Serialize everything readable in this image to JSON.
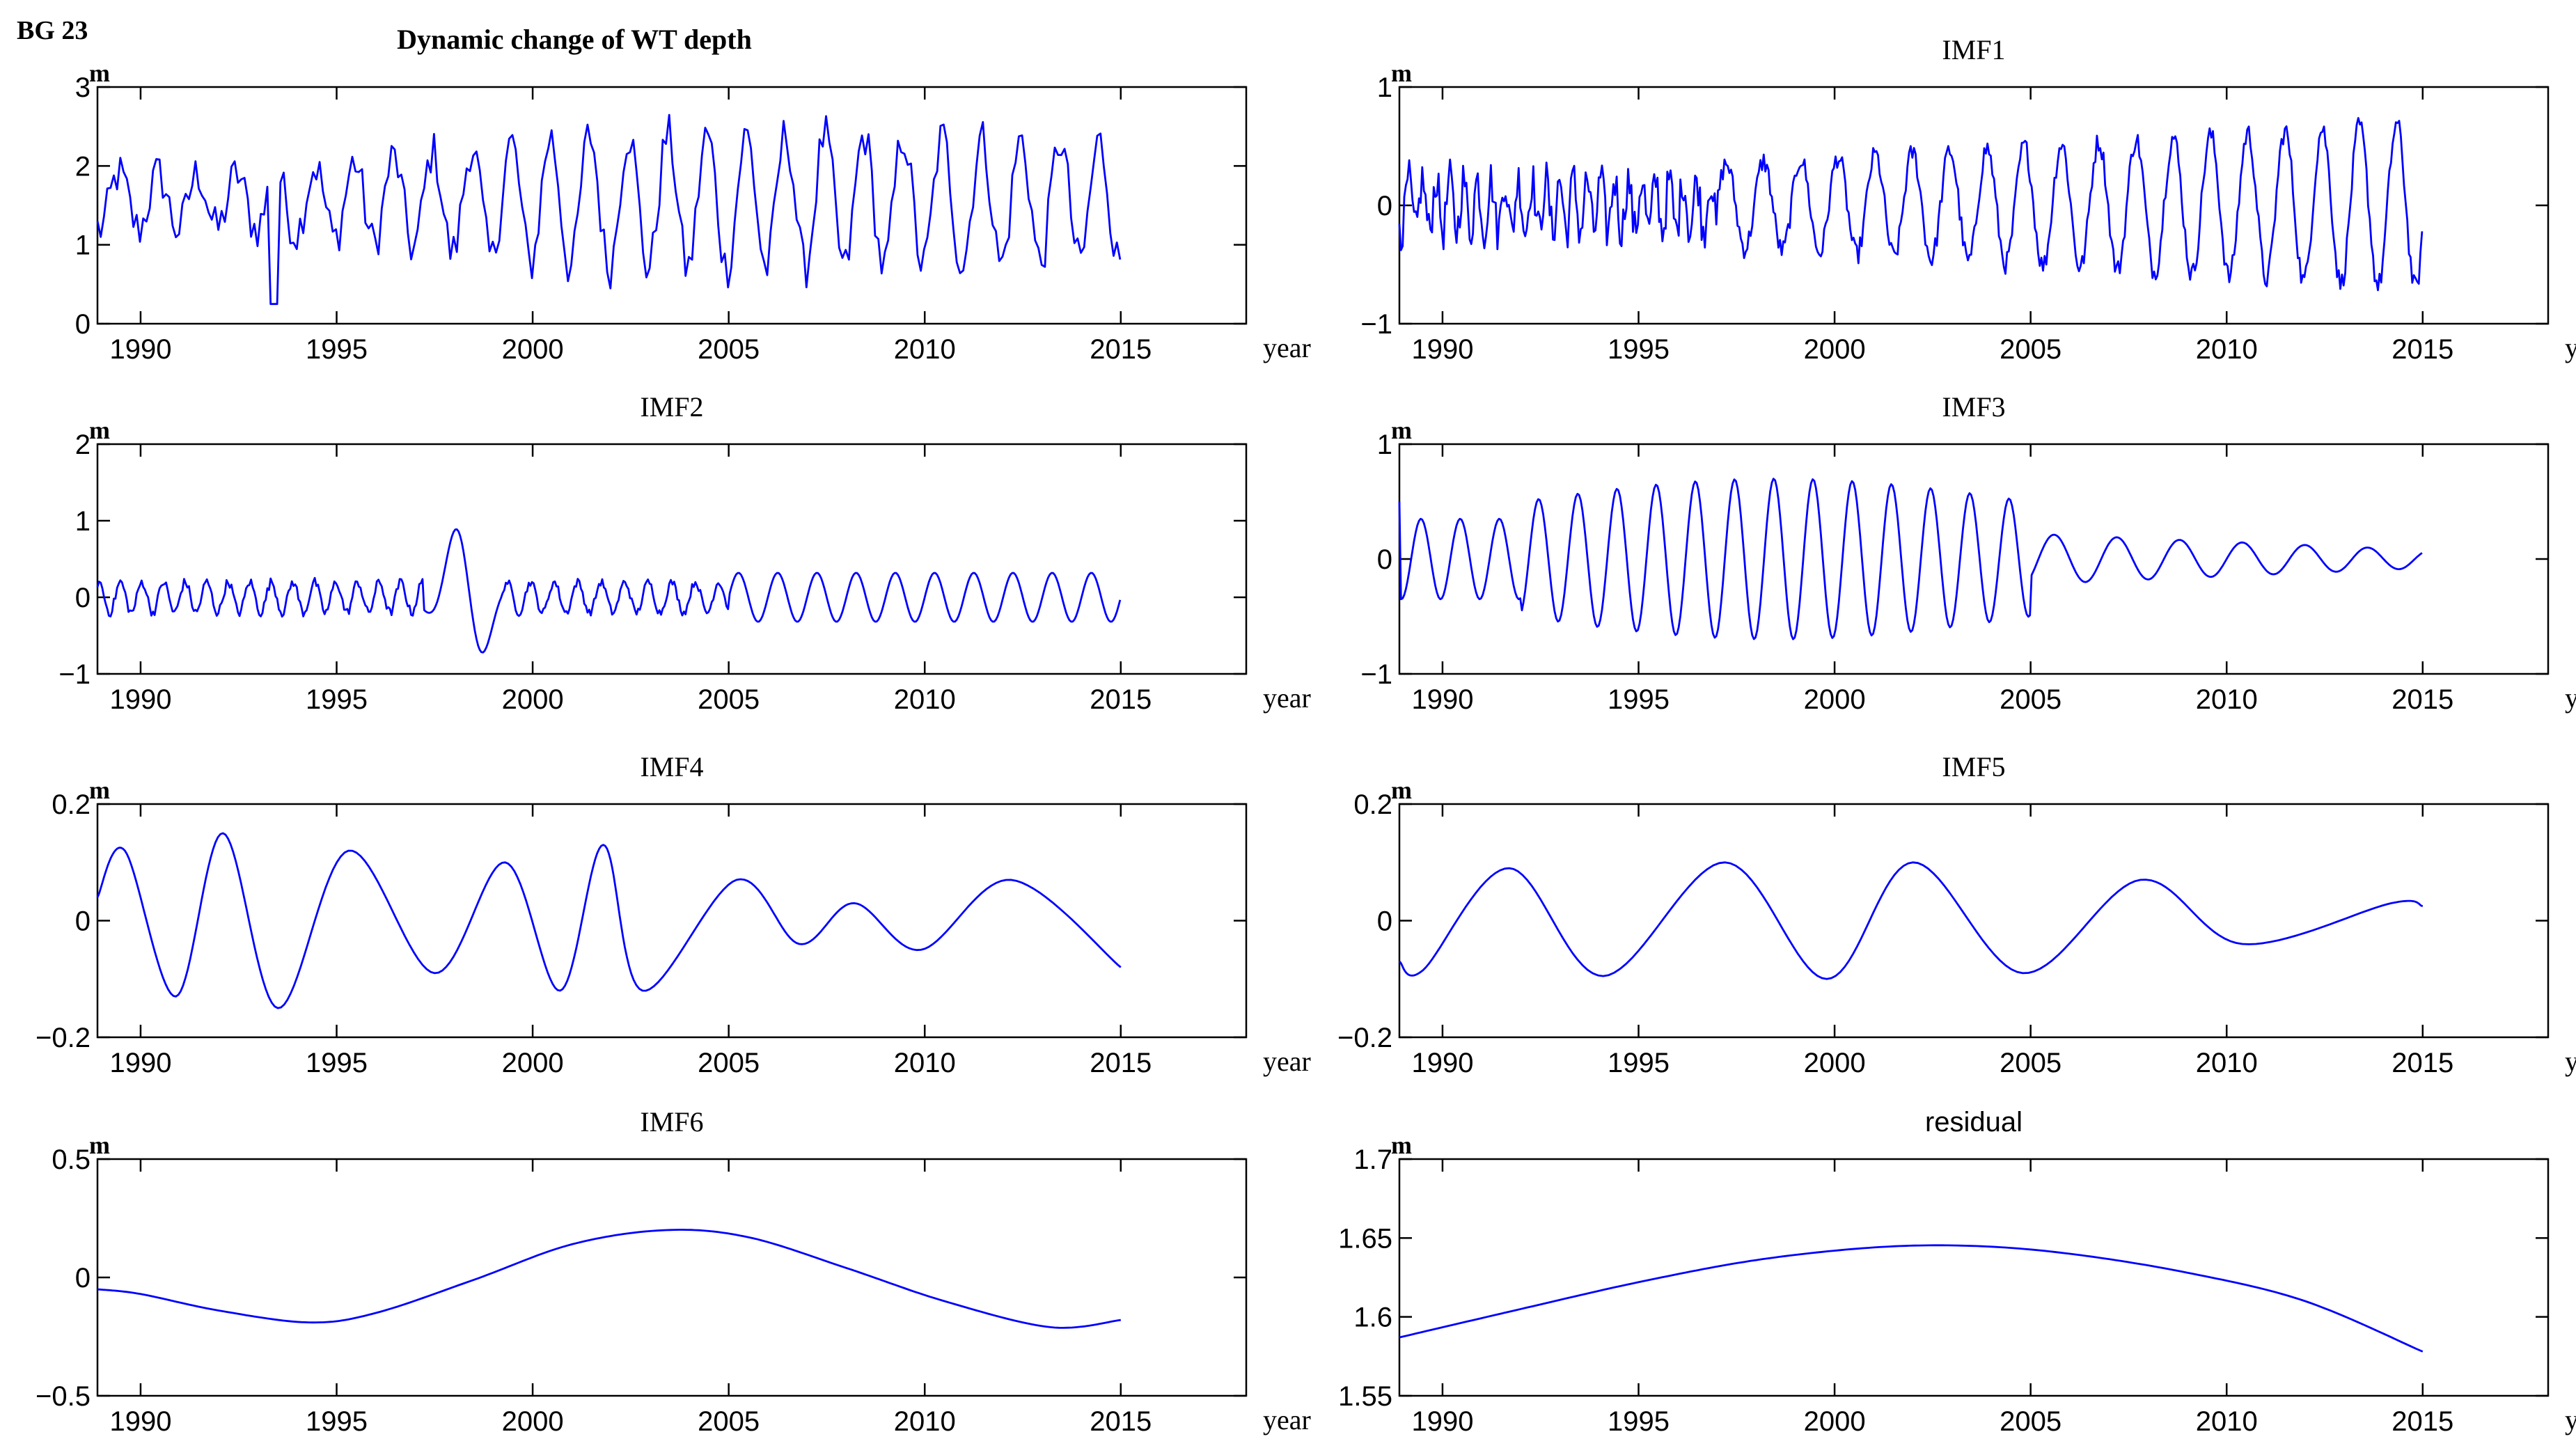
{
  "figure": {
    "station_label": "BG 23"
  },
  "colors": {
    "series": "#0000ff",
    "axes": "#000000",
    "background": "#ffffff"
  },
  "chart_data": [
    {
      "type": "line",
      "id": "wt",
      "title": "Dynamic change of WT depth",
      "ylabel": "m",
      "xlabel": "year",
      "ylim": [
        0,
        3
      ],
      "yticks": [
        "0",
        "1",
        "2",
        "3"
      ],
      "xlim": [
        1988.9,
        2018.2
      ],
      "xticks": [
        1990,
        1995,
        2000,
        2005,
        2010,
        2015
      ],
      "series": [
        {
          "gen": {
            "kind": "wt",
            "mean": 1.5,
            "amp": 0.75,
            "period": 1,
            "noise": 0.25
          }
        }
      ]
    },
    {
      "type": "line",
      "id": "imf1",
      "title": "IMF1",
      "ylabel": "m",
      "xlabel": "year",
      "ylim": [
        -1,
        1
      ],
      "yticks": [
        "−1",
        "0",
        "1"
      ],
      "xlim": [
        1988.9,
        2018.2
      ],
      "xticks": [
        1990,
        1995,
        2000,
        2005,
        2010,
        2015
      ],
      "series": [
        {
          "gen": {
            "kind": "imf1",
            "period": 0.65,
            "amp": 0.6
          }
        }
      ]
    },
    {
      "type": "line",
      "id": "imf2",
      "title": "IMF2",
      "ylabel": "m",
      "xlabel": "year",
      "ylim": [
        -1,
        2
      ],
      "yticks": [
        "−1",
        "0",
        "1",
        "2"
      ],
      "xlim": [
        1988.9,
        2018.2
      ],
      "xticks": [
        1990,
        1995,
        2000,
        2005,
        2010,
        2015
      ],
      "series": [
        {
          "gen": {
            "kind": "imf2",
            "period": 1.0,
            "amp": 0.3
          }
        }
      ]
    },
    {
      "type": "line",
      "id": "imf3",
      "title": "IMF3",
      "ylabel": "m",
      "xlabel": "year",
      "ylim": [
        -1,
        1
      ],
      "yticks": [
        "−1",
        "0",
        "1"
      ],
      "xlim": [
        1988.9,
        2018.2
      ],
      "xticks": [
        1990,
        1995,
        2000,
        2005,
        2010,
        2015
      ],
      "series": [
        {
          "gen": {
            "kind": "imf3",
            "period": 1.0,
            "amp": 0.6
          }
        }
      ]
    },
    {
      "type": "line",
      "id": "imf4",
      "title": "IMF4",
      "ylabel": "m",
      "xlabel": "year",
      "ylim": [
        -0.2,
        0.2
      ],
      "yticks": [
        "−0.2",
        "0",
        "0.2"
      ],
      "xlim": [
        1988.9,
        2018.2
      ],
      "xticks": [
        1990,
        1995,
        2000,
        2005,
        2010,
        2015
      ],
      "series": [
        {
          "points": [
            [
              1988.9,
              0.04
            ],
            [
              1989.6,
              0.12
            ],
            [
              1990.9,
              -0.13
            ],
            [
              1992.1,
              0.15
            ],
            [
              1993.5,
              -0.15
            ],
            [
              1995.3,
              0.12
            ],
            [
              1997.5,
              -0.09
            ],
            [
              1999.3,
              0.1
            ],
            [
              2000.7,
              -0.12
            ],
            [
              2001.8,
              0.13
            ],
            [
              2002.8,
              -0.12
            ],
            [
              2005.2,
              0.07
            ],
            [
              2006.8,
              -0.04
            ],
            [
              2008.2,
              0.03
            ],
            [
              2009.9,
              -0.05
            ],
            [
              2012.2,
              0.07
            ],
            [
              2015.0,
              -0.08
            ]
          ]
        }
      ]
    },
    {
      "type": "line",
      "id": "imf5",
      "title": "IMF5",
      "ylabel": "m",
      "xlabel": "year",
      "ylim": [
        -0.2,
        0.2
      ],
      "yticks": [
        "−0.2",
        "0",
        "0.2"
      ],
      "xlim": [
        1988.9,
        2018.2
      ],
      "xticks": [
        1990,
        1995,
        2000,
        2005,
        2010,
        2015
      ],
      "series": [
        {
          "points": [
            [
              1988.9,
              -0.07
            ],
            [
              1989.5,
              -0.085
            ],
            [
              1991.7,
              0.09
            ],
            [
              1994.1,
              -0.095
            ],
            [
              1997.2,
              0.1
            ],
            [
              1999.8,
              -0.1
            ],
            [
              2002.0,
              0.1
            ],
            [
              2004.8,
              -0.09
            ],
            [
              2007.8,
              0.07
            ],
            [
              2010.4,
              -0.04
            ],
            [
              2014.2,
              0.03
            ],
            [
              2015.0,
              0.025
            ]
          ]
        }
      ]
    },
    {
      "type": "line",
      "id": "imf6",
      "title": "IMF6",
      "ylabel": "m",
      "xlabel": "year",
      "ylim": [
        -0.5,
        0.5
      ],
      "yticks": [
        "−0.5",
        "0",
        "0.5"
      ],
      "xlim": [
        1988.9,
        2018.2
      ],
      "xticks": [
        1990,
        1995,
        2000,
        2005,
        2010,
        2015
      ],
      "series": [
        {
          "points": [
            [
              1988.9,
              -0.05
            ],
            [
              1990.0,
              -0.07
            ],
            [
              1992.0,
              -0.14
            ],
            [
              1994.3,
              -0.19
            ],
            [
              1996.0,
              -0.15
            ],
            [
              1998.5,
              -0.01
            ],
            [
              2001.0,
              0.14
            ],
            [
              2003.4,
              0.2
            ],
            [
              2005.5,
              0.17
            ],
            [
              2008.0,
              0.04
            ],
            [
              2010.5,
              -0.1
            ],
            [
              2013.2,
              -0.21
            ],
            [
              2015.0,
              -0.18
            ]
          ]
        }
      ]
    },
    {
      "type": "line",
      "id": "residual",
      "title": "residual",
      "ylabel": "m",
      "xlabel": "year",
      "ylim": [
        1.55,
        1.7
      ],
      "yticks": [
        "1.55",
        "1.6",
        "1.65",
        "1.7"
      ],
      "xlim": [
        1988.9,
        2018.2
      ],
      "xticks": [
        1990,
        1995,
        2000,
        2005,
        2010,
        2015
      ],
      "series": [
        {
          "points": [
            [
              1988.9,
              1.587
            ],
            [
              1992.0,
              1.605
            ],
            [
              1995.0,
              1.622
            ],
            [
              1998.0,
              1.636
            ],
            [
              2001.0,
              1.644
            ],
            [
              2003.5,
              1.645
            ],
            [
              2006.0,
              1.64
            ],
            [
              2009.0,
              1.628
            ],
            [
              2012.0,
              1.61
            ],
            [
              2015.0,
              1.578
            ]
          ]
        }
      ]
    }
  ]
}
